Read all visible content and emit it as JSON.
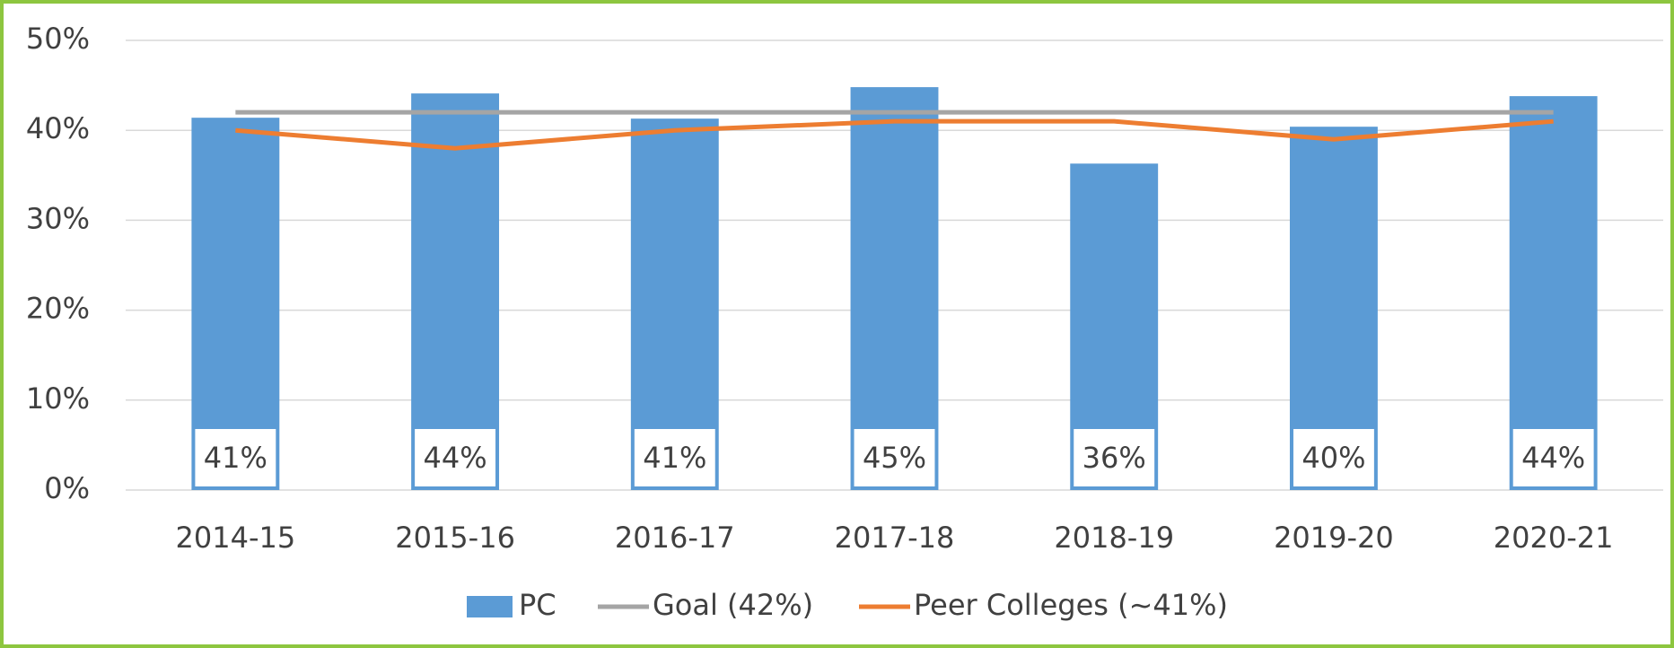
{
  "chart_data": {
    "type": "bar",
    "categories": [
      "2014-15",
      "2015-16",
      "2016-17",
      "2017-18",
      "2018-19",
      "2019-20",
      "2020-21"
    ],
    "series": [
      {
        "name": "PC",
        "type": "bar",
        "color": "#5b9bd5",
        "values": [
          41.4,
          44.1,
          41.3,
          44.8,
          36.3,
          40.4,
          43.8
        ],
        "value_labels": [
          "41%",
          "44%",
          "41%",
          "45%",
          "36%",
          "40%",
          "44%"
        ]
      },
      {
        "name": "Goal (42%)",
        "type": "line",
        "color": "#a5a5a5",
        "values": [
          42,
          42,
          42,
          42,
          42,
          42,
          42
        ]
      },
      {
        "name": "Peer Colleges (~41%)",
        "type": "line",
        "color": "#ed7d31",
        "values": [
          40,
          38,
          40,
          41,
          41,
          39,
          41
        ]
      }
    ],
    "ylim": [
      0,
      50
    ],
    "yticks": [
      {
        "value": 0,
        "label": "0%"
      },
      {
        "value": 10,
        "label": "10%"
      },
      {
        "value": 20,
        "label": "20%"
      },
      {
        "value": 30,
        "label": "30%"
      },
      {
        "value": 40,
        "label": "40%"
      },
      {
        "value": 50,
        "label": "50%"
      }
    ],
    "grid": true,
    "legend": "bottom"
  }
}
